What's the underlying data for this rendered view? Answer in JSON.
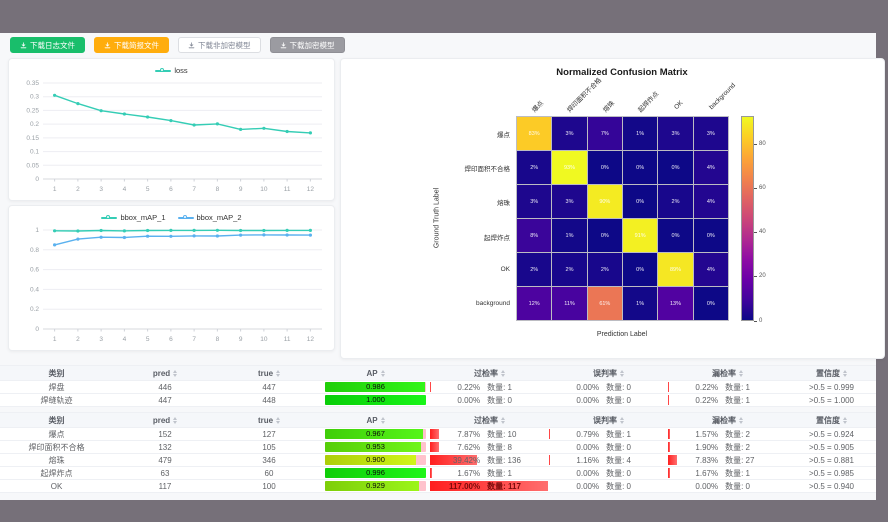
{
  "window": {
    "frame_color": "#767079",
    "content_bg": "#f7f8fa"
  },
  "toolbar": {
    "buttons": [
      {
        "name": "download-log-file-button",
        "label": "下载日志文件",
        "variant": "green",
        "icon": "download-icon"
      },
      {
        "name": "download-report-file-button",
        "label": "下载简报文件",
        "variant": "orange",
        "icon": "download-icon"
      },
      {
        "name": "download-unencrypted-model-button",
        "label": "下载非加密模型",
        "variant": "plain",
        "icon": "download-icon"
      },
      {
        "name": "download-encrypted-model-button",
        "label": "下载加密模型",
        "variant": "gray",
        "icon": "download-icon"
      }
    ]
  },
  "chart_data": [
    {
      "type": "line",
      "id": "loss",
      "x": [
        1,
        2,
        3,
        4,
        5,
        6,
        7,
        8,
        9,
        10,
        11,
        12
      ],
      "series": [
        {
          "name": "loss",
          "color": "#35cdb5",
          "values": [
            0.305,
            0.275,
            0.249,
            0.237,
            0.226,
            0.213,
            0.197,
            0.201,
            0.181,
            0.185,
            0.173,
            0.168
          ]
        }
      ],
      "ylim": [
        0,
        0.35
      ],
      "yticks": [
        0,
        0.05,
        0.1,
        0.15,
        0.2,
        0.25,
        0.3,
        0.35
      ],
      "ytick_labels": [
        "0",
        "0.05",
        "0.1",
        "0.15",
        "0.2",
        "0.25",
        "0.3",
        "0.35"
      ],
      "grid": true,
      "legend_position": "top"
    },
    {
      "type": "line",
      "id": "bbox_map",
      "x": [
        1,
        2,
        3,
        4,
        5,
        6,
        7,
        8,
        9,
        10,
        11,
        12
      ],
      "series": [
        {
          "name": "bbox_mAP_1",
          "color": "#35cdb5",
          "values": [
            0.992,
            0.99,
            0.995,
            0.991,
            0.995,
            0.996,
            0.996,
            0.997,
            0.995,
            0.995,
            0.996,
            0.996
          ]
        },
        {
          "name": "bbox_mAP_2",
          "color": "#5ab1ef",
          "values": [
            0.85,
            0.908,
            0.927,
            0.924,
            0.937,
            0.936,
            0.94,
            0.939,
            0.948,
            0.951,
            0.949,
            0.948
          ]
        }
      ],
      "ylim": [
        0,
        1
      ],
      "yticks": [
        0,
        0.2,
        0.4,
        0.6,
        0.8,
        1
      ],
      "ytick_labels": [
        "0",
        "0.2",
        "0.4",
        "0.6",
        "0.8",
        "1"
      ],
      "grid": true,
      "legend_position": "top"
    },
    {
      "type": "heatmap",
      "id": "confusion_matrix",
      "title": "Normalized Confusion Matrix",
      "xlabel": "Prediction Label",
      "ylabel": "Ground Truth Label",
      "labels": [
        "爆点",
        "焊印面积不合格",
        "熔珠",
        "起焊炸点",
        "OK",
        "background"
      ],
      "values_percent": [
        [
          83,
          3,
          7,
          1,
          3,
          3
        ],
        [
          2,
          93,
          0,
          0,
          0,
          4
        ],
        [
          3,
          3,
          90,
          0,
          2,
          4
        ],
        [
          8,
          1,
          0,
          91,
          0,
          0
        ],
        [
          2,
          2,
          2,
          0,
          89,
          4
        ],
        [
          12,
          11,
          61,
          1,
          13,
          0
        ]
      ],
      "vmax": 93,
      "colormap": "plasma",
      "colorbar_ticks": [
        0,
        20,
        40,
        60,
        80
      ]
    }
  ],
  "tables": [
    {
      "headers": [
        {
          "label": "类别",
          "sortable": false
        },
        {
          "label": "pred",
          "sortable": true
        },
        {
          "label": "true",
          "sortable": true
        },
        {
          "label": "AP",
          "sortable": true
        },
        {
          "label": "过检率",
          "sortable": true
        },
        {
          "label": "误判率",
          "sortable": true
        },
        {
          "label": "漏检率",
          "sortable": true
        },
        {
          "label": "置信度",
          "sortable": true
        }
      ],
      "rows": [
        {
          "name": "焊盘",
          "pred": "446",
          "true": "447",
          "ap": "0.986",
          "over": {
            "pct": "0.22%",
            "count": "数量: 1"
          },
          "misjudge": {
            "pct": "0.00%",
            "count": "数量: 0"
          },
          "miss": {
            "pct": "0.22%",
            "count": "数量: 1"
          },
          "conf": ">0.5 = 0.999"
        },
        {
          "name": "焊缝轨迹",
          "pred": "447",
          "true": "448",
          "ap": "1.000",
          "over": {
            "pct": "0.00%",
            "count": "数量: 0"
          },
          "misjudge": {
            "pct": "0.00%",
            "count": "数量: 0"
          },
          "miss": {
            "pct": "0.22%",
            "count": "数量: 1"
          },
          "conf": ">0.5 = 1.000"
        }
      ]
    },
    {
      "headers": [
        {
          "label": "类别",
          "sortable": false
        },
        {
          "label": "pred",
          "sortable": true
        },
        {
          "label": "true",
          "sortable": true
        },
        {
          "label": "AP",
          "sortable": true
        },
        {
          "label": "过检率",
          "sortable": true
        },
        {
          "label": "误判率",
          "sortable": true
        },
        {
          "label": "漏检率",
          "sortable": true
        },
        {
          "label": "置信度",
          "sortable": true
        }
      ],
      "rows": [
        {
          "name": "爆点",
          "pred": "152",
          "true": "127",
          "ap": "0.967",
          "over": {
            "pct": "7.87%",
            "count": "数量: 10"
          },
          "misjudge": {
            "pct": "0.79%",
            "count": "数量: 1"
          },
          "miss": {
            "pct": "1.57%",
            "count": "数量: 2"
          },
          "conf": ">0.5 = 0.924"
        },
        {
          "name": "焊印面积不合格",
          "pred": "132",
          "true": "105",
          "ap": "0.953",
          "over": {
            "pct": "7.62%",
            "count": "数量: 8"
          },
          "misjudge": {
            "pct": "0.00%",
            "count": "数量: 0"
          },
          "miss": {
            "pct": "1.90%",
            "count": "数量: 2"
          },
          "conf": ">0.5 = 0.905"
        },
        {
          "name": "熔珠",
          "pred": "479",
          "true": "346",
          "ap": "0.900",
          "over": {
            "pct": "39.42%",
            "count": "数量: 136"
          },
          "misjudge": {
            "pct": "1.16%",
            "count": "数量: 4"
          },
          "miss": {
            "pct": "7.83%",
            "count": "数量: 27"
          },
          "conf": ">0.5 = 0.881"
        },
        {
          "name": "起焊炸点",
          "pred": "63",
          "true": "60",
          "ap": "0.996",
          "over": {
            "pct": "1.67%",
            "count": "数量: 1"
          },
          "misjudge": {
            "pct": "0.00%",
            "count": "数量: 0"
          },
          "miss": {
            "pct": "1.67%",
            "count": "数量: 1"
          },
          "conf": ">0.5 = 0.985"
        },
        {
          "name": "OK",
          "pred": "117",
          "true": "100",
          "ap": "0.929",
          "over": {
            "pct": "117.00%",
            "count": "数量: 117"
          },
          "misjudge": {
            "pct": "0.00%",
            "count": "数量: 0"
          },
          "miss": {
            "pct": "0.00%",
            "count": "数量: 0"
          },
          "conf": ">0.5 = 0.940"
        }
      ]
    }
  ]
}
